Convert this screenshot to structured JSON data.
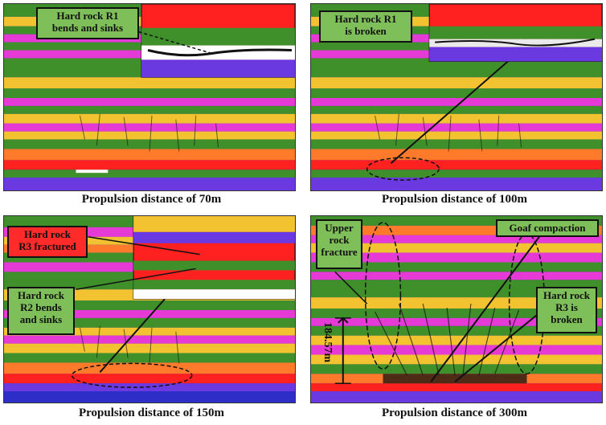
{
  "panels": [
    {
      "caption": "Propulsion distance of 70m",
      "labels": [
        "Hard rock R1\nbends and sinks"
      ]
    },
    {
      "caption": "Propulsion distance of 100m",
      "labels": [
        "Hard rock R1\nis broken"
      ]
    },
    {
      "caption": "Propulsion distance of 150m",
      "labels": [
        "Hard rock\nR3 fractured",
        "Hard rock\nR2 bends\nand sinks"
      ]
    },
    {
      "caption": "Propulsion distance of 300m",
      "labels": [
        "Upper\nrock\nfracture",
        "Goaf compaction",
        "Hard rock\nR3 is\nbroken"
      ],
      "dimension": "184.57m"
    }
  ],
  "colors": {
    "green": "#3f8f2a",
    "yellow": "#f2c230",
    "magenta": "#e63ad6",
    "orange": "#ff7a2a",
    "red": "#ff2020",
    "purple": "#6a3ae0",
    "blue": "#2d2dc8",
    "black": "#111111"
  }
}
